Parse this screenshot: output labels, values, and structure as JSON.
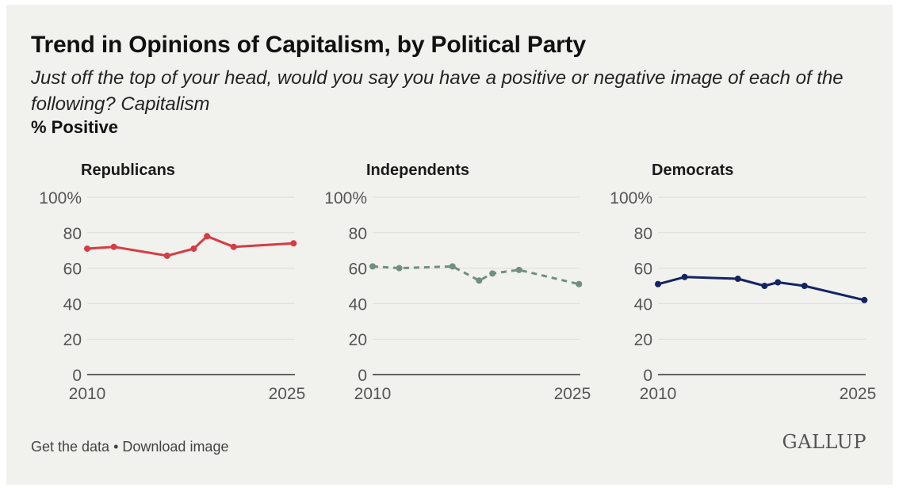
{
  "header": {
    "title": "Trend in Opinions of Capitalism, by Political Party",
    "subtitle": "Just off the top of your head, would you say you have a positive or negative image of each of the following? Capitalism",
    "measure": "% Positive"
  },
  "footer": {
    "get_data": "Get the data",
    "separator": " • ",
    "download": "Download image",
    "logo": "GALLUP"
  },
  "colors": {
    "republicans": "#d63c43",
    "independents": "#6f8f7f",
    "democrats": "#142463",
    "grid": "#dcdcd8",
    "axis": "#333333",
    "tick_text": "#555555"
  },
  "chart_data": [
    {
      "type": "line",
      "title": "Republicans",
      "line_style": "solid",
      "color": "#d63c43",
      "x_ticks": [
        "2010",
        "2025"
      ],
      "y_ticks": [
        "100%",
        "80",
        "60",
        "40",
        "20",
        "0"
      ],
      "ylim": [
        0,
        100
      ],
      "xlim": [
        2010,
        2025.6
      ],
      "grid": true,
      "series": [
        {
          "x": [
            2010,
            2012,
            2016,
            2018,
            2019,
            2021,
            2025.5
          ],
          "values": [
            71,
            72,
            67,
            71,
            78,
            72,
            74
          ]
        }
      ]
    },
    {
      "type": "line",
      "title": "Independents",
      "line_style": "dashed",
      "color": "#6f8f7f",
      "x_ticks": [
        "2010",
        "2025"
      ],
      "y_ticks": [
        "100%",
        "80",
        "60",
        "40",
        "20",
        "0"
      ],
      "ylim": [
        0,
        100
      ],
      "xlim": [
        2010,
        2025.6
      ],
      "grid": true,
      "series": [
        {
          "x": [
            2010,
            2012,
            2016,
            2018,
            2019,
            2021,
            2025.5
          ],
          "values": [
            61,
            60,
            61,
            53,
            57,
            59,
            51
          ]
        }
      ]
    },
    {
      "type": "line",
      "title": "Democrats",
      "line_style": "solid",
      "color": "#142463",
      "x_ticks": [
        "2010",
        "2025"
      ],
      "y_ticks": [
        "100%",
        "80",
        "60",
        "40",
        "20",
        "0"
      ],
      "ylim": [
        0,
        100
      ],
      "xlim": [
        2010,
        2025.6
      ],
      "grid": true,
      "series": [
        {
          "x": [
            2010,
            2012,
            2016,
            2018,
            2019,
            2021,
            2025.5
          ],
          "values": [
            51,
            55,
            54,
            50,
            52,
            50,
            42
          ]
        }
      ]
    }
  ]
}
